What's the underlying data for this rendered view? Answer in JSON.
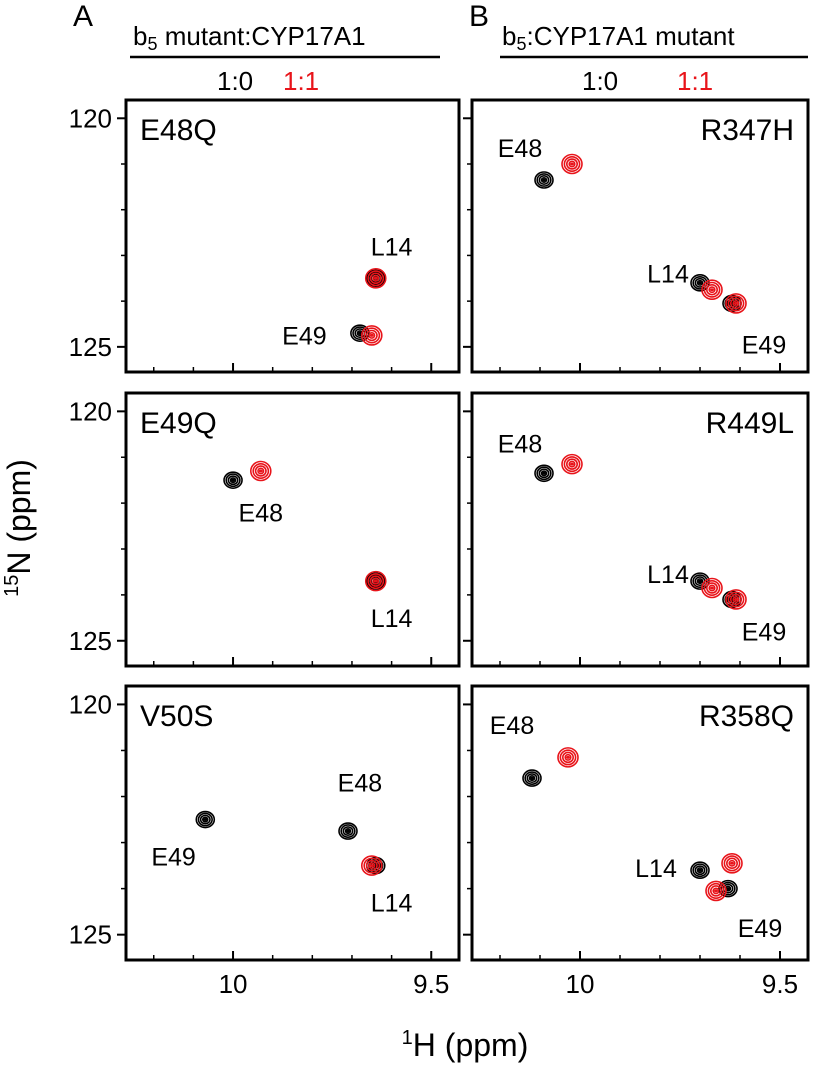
{
  "panel_letters": {
    "a": "A",
    "b": "B"
  },
  "headers": {
    "a": {
      "b_base": "b",
      "b_sub": "5",
      "rest": " mutant:CYP17A1"
    },
    "b": {
      "b_base": "b",
      "b_sub": "5",
      "rest": ":CYP17A1 mutant"
    }
  },
  "ratios": {
    "black_label": "1:0",
    "red_label": "1:1"
  },
  "colors": {
    "free": "#000000",
    "bound": "#e8141a"
  },
  "axes": {
    "xlabel_sup": "1",
    "xlabel_text": "H (ppm)",
    "ylabel_sup": "15",
    "ylabel_text": "N (ppm)"
  },
  "chart_data": {
    "type": "scatter",
    "description_of_marks": "HSQC cross-peaks; black = 1:0, red = 1:1",
    "x_axis": {
      "units": "ppm",
      "reversed": true,
      "range": [
        10.27,
        9.43
      ],
      "ticks": [
        10,
        9.5
      ],
      "minor_ticks": [
        10.2,
        10.1,
        9.9,
        9.8,
        9.7,
        9.6
      ]
    },
    "y_axis": {
      "units": "ppm",
      "reversed": true,
      "range": [
        119.6,
        125.55
      ],
      "ticks": [
        120,
        125
      ],
      "minor_ticks": [
        121,
        122,
        123,
        124
      ]
    },
    "panels": [
      {
        "id": "A1",
        "label": "E48Q",
        "peaks": [
          {
            "residue": "L14",
            "black": [
              9.64,
              123.5
            ],
            "red": [
              9.64,
              123.5
            ],
            "label_pos": [
              9.6,
              122.8
            ]
          },
          {
            "residue": "E49",
            "black": [
              9.68,
              124.7
            ],
            "red": [
              9.65,
              124.75
            ],
            "label_pos": [
              9.82,
              124.75
            ]
          }
        ]
      },
      {
        "id": "A2",
        "label": "E49Q",
        "peaks": [
          {
            "residue": "E48",
            "black": [
              10.0,
              121.5
            ],
            "red": [
              9.93,
              121.3
            ],
            "label_pos": [
              9.93,
              122.2
            ]
          },
          {
            "residue": "L14",
            "black": [
              9.64,
              123.7
            ],
            "red": [
              9.64,
              123.7
            ],
            "label_pos": [
              9.6,
              124.5
            ]
          }
        ]
      },
      {
        "id": "A3",
        "label": "V50S",
        "peaks": [
          {
            "residue": "E48",
            "black": [
              9.71,
              122.75
            ],
            "red": null,
            "label_pos": [
              9.68,
              121.7
            ]
          },
          {
            "residue": "E49",
            "black": [
              10.07,
              122.5
            ],
            "red": null,
            "label_pos": [
              10.15,
              123.3
            ]
          },
          {
            "residue": "L14",
            "black": [
              9.64,
              123.5
            ],
            "red": [
              9.65,
              123.5
            ],
            "label_pos": [
              9.6,
              124.3
            ]
          }
        ]
      },
      {
        "id": "B1",
        "label": "R347H",
        "peaks": [
          {
            "residue": "E48",
            "black": [
              10.09,
              121.35
            ],
            "red": [
              10.02,
              121.0
            ],
            "label_pos": [
              10.15,
              120.65
            ]
          },
          {
            "residue": "L14",
            "black": [
              9.7,
              123.6
            ],
            "red": [
              9.67,
              123.75
            ],
            "label_pos": [
              9.78,
              123.4
            ]
          },
          {
            "residue": "E49",
            "black": [
              9.62,
              124.05
            ],
            "red": [
              9.61,
              124.05
            ],
            "label_pos": [
              9.54,
              124.95
            ]
          }
        ]
      },
      {
        "id": "B2",
        "label": "R449L",
        "peaks": [
          {
            "residue": "E48",
            "black": [
              10.09,
              121.35
            ],
            "red": [
              10.02,
              121.15
            ],
            "label_pos": [
              10.15,
              120.7
            ]
          },
          {
            "residue": "L14",
            "black": [
              9.7,
              123.7
            ],
            "red": [
              9.67,
              123.85
            ],
            "label_pos": [
              9.78,
              123.55
            ]
          },
          {
            "residue": "E49",
            "black": [
              9.62,
              124.1
            ],
            "red": [
              9.61,
              124.1
            ],
            "label_pos": [
              9.54,
              124.8
            ]
          }
        ]
      },
      {
        "id": "B3",
        "label": "R358Q",
        "peaks": [
          {
            "residue": "E48",
            "black": [
              10.12,
              121.6
            ],
            "red": [
              10.03,
              121.15
            ],
            "label_pos": [
              10.17,
              120.45
            ]
          },
          {
            "residue": "L14",
            "black": [
              9.7,
              123.6
            ],
            "red": [
              9.62,
              123.45
            ],
            "label_pos": [
              9.81,
              123.55
            ]
          },
          {
            "residue": "E49",
            "black": [
              9.63,
              124.0
            ],
            "red": [
              9.66,
              124.05
            ],
            "label_pos": [
              9.55,
              124.85
            ]
          }
        ]
      }
    ]
  }
}
